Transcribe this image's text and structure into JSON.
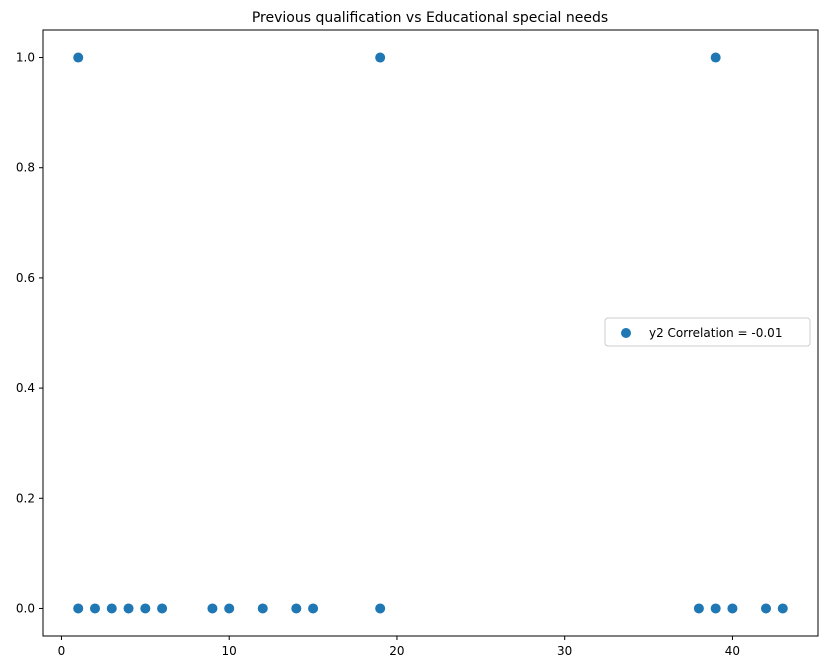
{
  "chart_data": {
    "type": "scatter",
    "title": "Previous qualification vs Educational special needs",
    "xlabel": "",
    "ylabel": "",
    "xlim": [
      -1.1,
      45.1
    ],
    "ylim": [
      -0.05,
      1.05
    ],
    "xticks": [
      0,
      10,
      20,
      30,
      40
    ],
    "yticks": [
      0.0,
      0.2,
      0.4,
      0.6,
      0.8,
      1.0
    ],
    "xtick_labels": [
      "0",
      "10",
      "20",
      "30",
      "40"
    ],
    "ytick_labels": [
      "0.0",
      "0.2",
      "0.4",
      "0.6",
      "0.8",
      "1.0"
    ],
    "grid": false,
    "legend_position": "center-right",
    "series": [
      {
        "name": "y2 Correlation = -0.01",
        "color": "#1f77b4",
        "x": [
          1,
          19,
          39,
          1,
          2,
          3,
          4,
          5,
          6,
          9,
          10,
          12,
          14,
          15,
          19,
          38,
          39,
          40,
          42,
          43
        ],
        "y": [
          1,
          1,
          1,
          0,
          0,
          0,
          0,
          0,
          0,
          0,
          0,
          0,
          0,
          0,
          0,
          0,
          0,
          0,
          0,
          0
        ]
      }
    ]
  }
}
